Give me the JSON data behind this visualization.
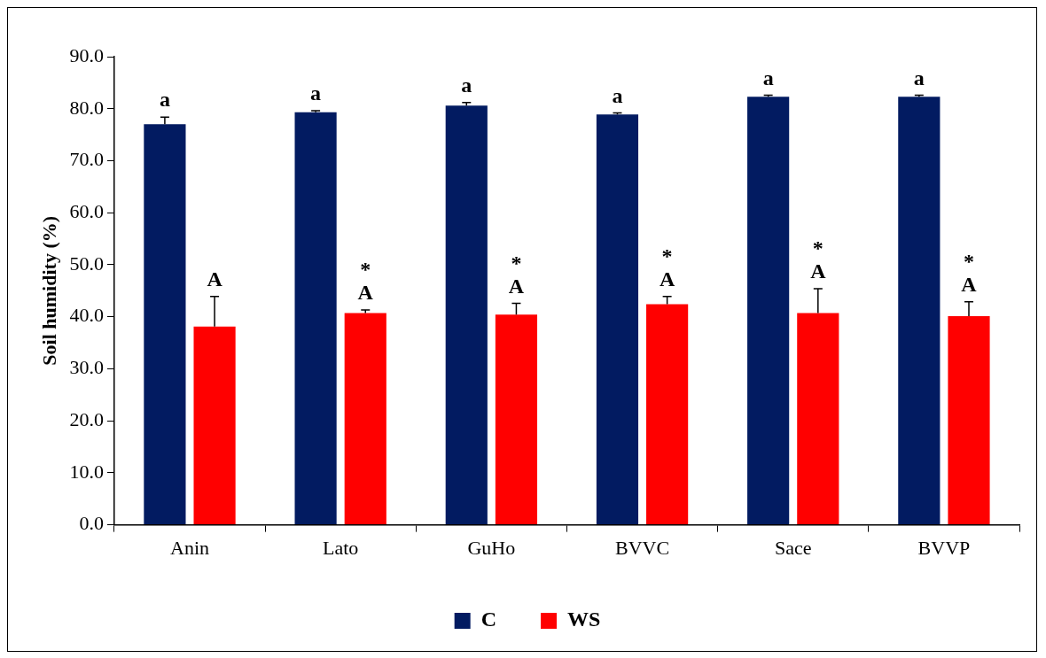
{
  "chart_data": {
    "type": "bar",
    "ylabel": "Soil humidity (%)",
    "categories": [
      "Anin",
      "Lato",
      "GuHo",
      "BVVC",
      "Sace",
      "BVVP"
    ],
    "series": [
      {
        "name": "C",
        "color": "#021b61",
        "values": [
          77.0,
          79.3,
          80.6,
          78.9,
          82.3,
          82.3
        ],
        "errors": [
          [
            77.0,
            78.4
          ],
          [
            79.3,
            79.6
          ],
          [
            80.6,
            81.2
          ],
          [
            78.9,
            79.2
          ],
          [
            82.3,
            82.6
          ],
          [
            82.3,
            82.6
          ]
        ]
      },
      {
        "name": "WS",
        "color": "#ff0000",
        "values": [
          38.1,
          40.7,
          40.4,
          42.4,
          40.7,
          40.1
        ],
        "errors": [
          [
            38.1,
            43.9
          ],
          [
            40.7,
            41.3
          ],
          [
            40.4,
            42.6
          ],
          [
            42.4,
            43.9
          ],
          [
            40.7,
            45.4
          ],
          [
            40.1,
            42.9
          ]
        ]
      }
    ],
    "ylim": [
      0,
      90
    ],
    "yticks": [
      {
        "value": 0,
        "label": "0.0"
      },
      {
        "value": 10,
        "label": "10.0"
      },
      {
        "value": 20,
        "label": "20.0"
      },
      {
        "value": 30,
        "label": "30.0"
      },
      {
        "value": 40,
        "label": "40.0"
      },
      {
        "value": 50,
        "label": "50.0"
      },
      {
        "value": 60,
        "label": "60.0"
      },
      {
        "value": 70,
        "label": "70.0"
      },
      {
        "value": 80,
        "label": "80.0"
      },
      {
        "value": 90,
        "label": "90.0"
      }
    ],
    "grid": false,
    "legend": "bottom",
    "annotations": [
      {
        "text": "a",
        "x": "Anin",
        "y": 77.0
      },
      {
        "text": "a",
        "x": "Lato",
        "y": 79.3
      },
      {
        "text": "a",
        "x": "GuHo",
        "y": 80.6
      },
      {
        "text": "a",
        "x": "BVVC",
        "y": 78.9
      },
      {
        "text": "a",
        "x": "Sace",
        "y": 82.3
      },
      {
        "text": "a",
        "x": "BVVP",
        "y": 82.3
      },
      {
        "text": "A",
        "x": "Anin",
        "y": 38.1
      },
      {
        "text": "A",
        "x": "Lato",
        "y": 40.7
      },
      {
        "text": "A",
        "x": "GuHo",
        "y": 40.4
      },
      {
        "text": "A",
        "x": "BVVC",
        "y": 42.4
      },
      {
        "text": "A",
        "x": "Sace",
        "y": 40.7
      },
      {
        "text": "A",
        "x": "BVVP",
        "y": 40.1
      },
      {
        "text": "*",
        "x": "Lato",
        "y": 40.7
      },
      {
        "text": "*",
        "x": "GuHo",
        "y": 40.4
      },
      {
        "text": "*",
        "x": "BVVC",
        "y": 42.4
      },
      {
        "text": "*",
        "x": "Sace",
        "y": 40.7
      },
      {
        "text": "*",
        "x": "BVVP",
        "y": 40.1
      }
    ]
  }
}
